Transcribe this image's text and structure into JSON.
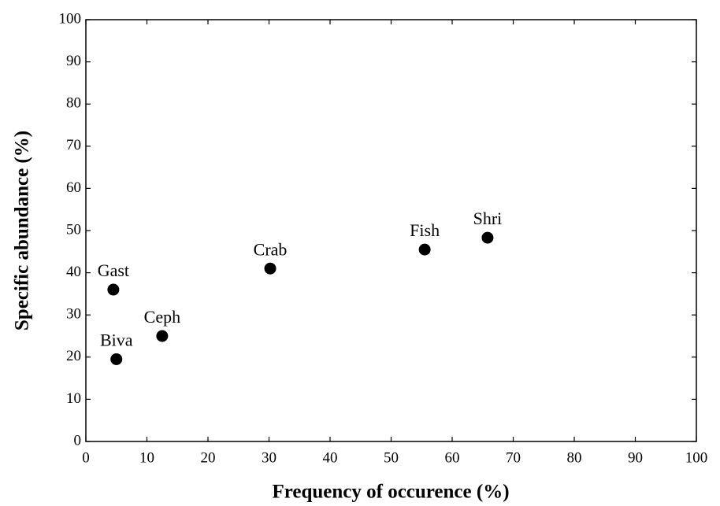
{
  "chart_data": {
    "type": "scatter",
    "x_label": "Frequency of occurence (%)",
    "y_label": "Specific abundance (%)",
    "x": [
      4.5,
      5.0,
      12.5,
      30.2,
      55.5,
      65.8
    ],
    "values": [
      36,
      19.5,
      25,
      41,
      45.5,
      48.3
    ],
    "point_labels": [
      "Gast",
      "Biva",
      "Ceph",
      "Crab",
      "Fish",
      "Shri"
    ],
    "color": "#000000",
    "xlim": [
      0,
      100
    ],
    "xticks": [
      0,
      10,
      20,
      30,
      40,
      50,
      60,
      70,
      80,
      90,
      100
    ],
    "ylim": [
      0,
      100
    ],
    "yticks": [
      0,
      10,
      20,
      30,
      40,
      50,
      60,
      70,
      80,
      90,
      100
    ],
    "grid": false
  }
}
